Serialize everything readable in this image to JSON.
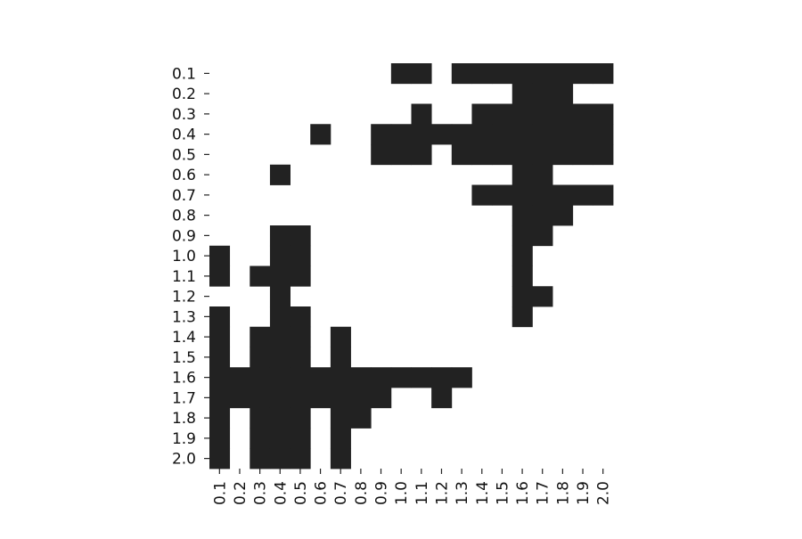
{
  "chart_data": {
    "type": "heatmap",
    "title": "",
    "xlabel": "",
    "ylabel": "",
    "x_categories": [
      "0.1",
      "0.2",
      "0.3",
      "0.4",
      "0.5",
      "0.6",
      "0.7",
      "0.8",
      "0.9",
      "1.0",
      "1.1",
      "1.2",
      "1.3",
      "1.4",
      "1.5",
      "1.6",
      "1.7",
      "1.8",
      "1.9",
      "2.0"
    ],
    "y_categories": [
      "0.1",
      "0.2",
      "0.3",
      "0.4",
      "0.5",
      "0.6",
      "0.7",
      "0.8",
      "0.9",
      "1.0",
      "1.1",
      "1.2",
      "1.3",
      "1.4",
      "1.5",
      "1.6",
      "1.7",
      "1.8",
      "1.9",
      "2.0"
    ],
    "colors": {
      "filled": "#222222",
      "empty": "#ffffff"
    },
    "grid": false,
    "legend": "none",
    "matrix": [
      [
        0,
        0,
        0,
        0,
        0,
        0,
        0,
        0,
        0,
        1,
        1,
        0,
        1,
        1,
        1,
        1,
        1,
        1,
        1,
        1
      ],
      [
        0,
        0,
        0,
        0,
        0,
        0,
        0,
        0,
        0,
        0,
        0,
        0,
        0,
        0,
        0,
        1,
        1,
        1,
        0,
        0
      ],
      [
        0,
        0,
        0,
        0,
        0,
        0,
        0,
        0,
        0,
        0,
        1,
        0,
        0,
        1,
        1,
        1,
        1,
        1,
        1,
        1
      ],
      [
        0,
        0,
        0,
        0,
        0,
        1,
        0,
        0,
        1,
        1,
        1,
        1,
        1,
        1,
        1,
        1,
        1,
        1,
        1,
        1
      ],
      [
        0,
        0,
        0,
        0,
        0,
        0,
        0,
        0,
        1,
        1,
        1,
        0,
        1,
        1,
        1,
        1,
        1,
        1,
        1,
        1
      ],
      [
        0,
        0,
        0,
        1,
        0,
        0,
        0,
        0,
        0,
        0,
        0,
        0,
        0,
        0,
        0,
        1,
        1,
        0,
        0,
        0
      ],
      [
        0,
        0,
        0,
        0,
        0,
        0,
        0,
        0,
        0,
        0,
        0,
        0,
        0,
        1,
        1,
        1,
        1,
        1,
        1,
        1
      ],
      [
        0,
        0,
        0,
        0,
        0,
        0,
        0,
        0,
        0,
        0,
        0,
        0,
        0,
        0,
        0,
        1,
        1,
        1,
        0,
        0
      ],
      [
        0,
        0,
        0,
        1,
        1,
        0,
        0,
        0,
        0,
        0,
        0,
        0,
        0,
        0,
        0,
        1,
        1,
        0,
        0,
        0
      ],
      [
        1,
        0,
        0,
        1,
        1,
        0,
        0,
        0,
        0,
        0,
        0,
        0,
        0,
        0,
        0,
        1,
        0,
        0,
        0,
        0
      ],
      [
        1,
        0,
        1,
        1,
        1,
        0,
        0,
        0,
        0,
        0,
        0,
        0,
        0,
        0,
        0,
        1,
        0,
        0,
        0,
        0
      ],
      [
        0,
        0,
        0,
        1,
        0,
        0,
        0,
        0,
        0,
        0,
        0,
        0,
        0,
        0,
        0,
        1,
        1,
        0,
        0,
        0
      ],
      [
        1,
        0,
        0,
        1,
        1,
        0,
        0,
        0,
        0,
        0,
        0,
        0,
        0,
        0,
        0,
        1,
        0,
        0,
        0,
        0
      ],
      [
        1,
        0,
        1,
        1,
        1,
        0,
        1,
        0,
        0,
        0,
        0,
        0,
        0,
        0,
        0,
        0,
        0,
        0,
        0,
        0
      ],
      [
        1,
        0,
        1,
        1,
        1,
        0,
        1,
        0,
        0,
        0,
        0,
        0,
        0,
        0,
        0,
        0,
        0,
        0,
        0,
        0
      ],
      [
        1,
        1,
        1,
        1,
        1,
        1,
        1,
        1,
        1,
        1,
        1,
        1,
        1,
        0,
        0,
        0,
        0,
        0,
        0,
        0
      ],
      [
        1,
        1,
        1,
        1,
        1,
        1,
        1,
        1,
        1,
        0,
        0,
        1,
        0,
        0,
        0,
        0,
        0,
        0,
        0,
        0
      ],
      [
        1,
        0,
        1,
        1,
        1,
        0,
        1,
        1,
        0,
        0,
        0,
        0,
        0,
        0,
        0,
        0,
        0,
        0,
        0,
        0
      ],
      [
        1,
        0,
        1,
        1,
        1,
        0,
        1,
        0,
        0,
        0,
        0,
        0,
        0,
        0,
        0,
        0,
        0,
        0,
        0,
        0
      ],
      [
        1,
        0,
        1,
        1,
        1,
        0,
        1,
        0,
        0,
        0,
        0,
        0,
        0,
        0,
        0,
        0,
        0,
        0,
        0,
        0
      ]
    ]
  }
}
